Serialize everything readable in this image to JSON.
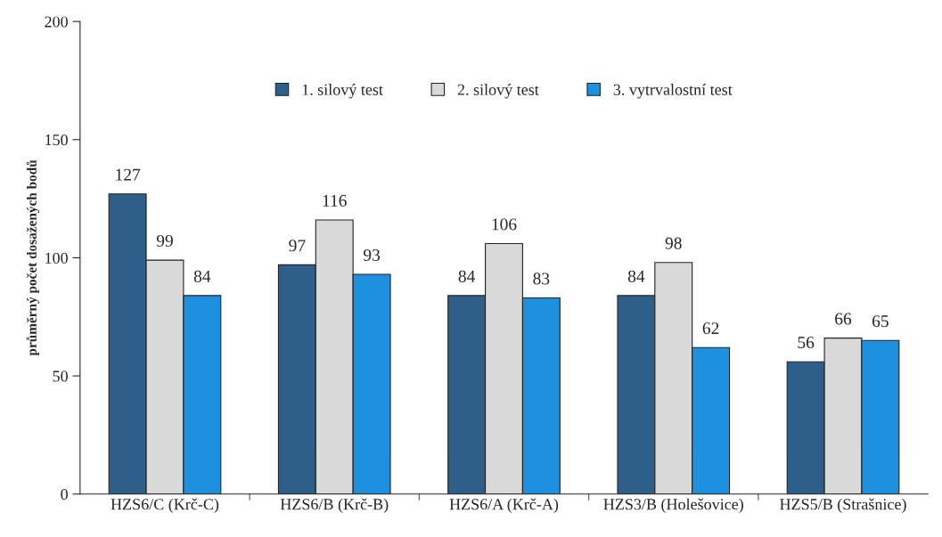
{
  "chart_data": {
    "type": "bar",
    "ylabel": "průměrný počet dosažených bodů",
    "categories": [
      "HZS6/C (Krč-C)",
      "HZS6/B (Krč-B)",
      "HZS6/A (Krč-A)",
      "HZS3/B (Holešovice)",
      "HZS5/B (Strašnice)"
    ],
    "series": [
      {
        "name": "1. silový test",
        "color": "#2e5f8a",
        "values": [
          127,
          97,
          84,
          84,
          56
        ]
      },
      {
        "name": "2. silový test",
        "color": "#d9d9d9",
        "values": [
          99,
          116,
          106,
          98,
          66
        ]
      },
      {
        "name": "3. vytrvalostní test",
        "color": "#1e90e0",
        "values": [
          84,
          93,
          83,
          62,
          65
        ]
      }
    ],
    "ylim": [
      0,
      200
    ],
    "yticks": [
      0,
      50,
      100,
      150,
      200
    ],
    "data_labels": true,
    "grid": false,
    "legend": "top"
  }
}
